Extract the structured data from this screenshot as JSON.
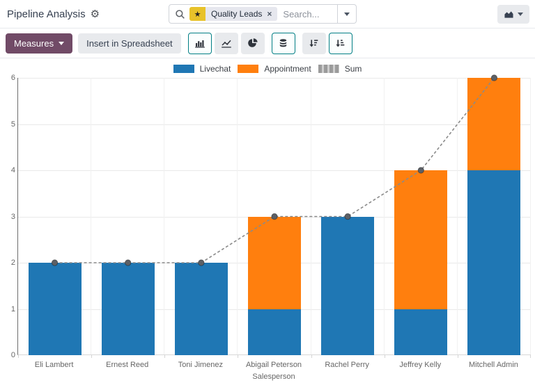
{
  "header": {
    "title": "Pipeline Analysis",
    "search": {
      "facet_label": "Quality Leads",
      "remove_label": "×",
      "placeholder": "Search..."
    }
  },
  "toolbar": {
    "measures_label": "Measures",
    "insert_spreadsheet_label": "Insert in Spreadsheet",
    "buttons": [
      "bar-chart",
      "line-chart",
      "pie-chart",
      "stacked",
      "sort-descending",
      "sort-ascending"
    ],
    "selected_buttons": [
      "bar-chart",
      "stacked",
      "sort-ascending"
    ]
  },
  "chart_data": {
    "type": "bar",
    "stacked": true,
    "categories": [
      "Eli Lambert",
      "Ernest Reed",
      "Toni Jimenez",
      "Abigail Peterson",
      "Rachel Perry",
      "Jeffrey Kelly",
      "Mitchell Admin"
    ],
    "series": [
      {
        "name": "Livechat",
        "type": "bar",
        "color": "#1f77b4",
        "values": [
          2,
          2,
          2,
          1,
          3,
          1,
          4
        ]
      },
      {
        "name": "Appointment",
        "type": "bar",
        "color": "#ff7f0e",
        "values": [
          0,
          0,
          0,
          2,
          0,
          3,
          2
        ]
      },
      {
        "name": "Sum",
        "type": "line",
        "dashed": true,
        "color": "#8a8a8a",
        "marker_color": "#5c6066",
        "values": [
          2,
          2,
          2,
          3,
          3,
          4,
          6
        ]
      }
    ],
    "xlabel": "Salesperson",
    "ylabel": "",
    "ylim": [
      0,
      6
    ],
    "yticks": [
      0,
      1,
      2,
      3,
      4,
      5,
      6
    ],
    "legend_position": "top",
    "grid": true
  },
  "colors": {
    "primary_purple": "#714B67",
    "selected_teal": "#017e84",
    "facet_yellow": "#e8c22a",
    "button_gray": "#e8eaed",
    "series_blue": "#1f77b4",
    "series_orange": "#ff7f0e",
    "sum_gray": "#8a8a8a"
  }
}
